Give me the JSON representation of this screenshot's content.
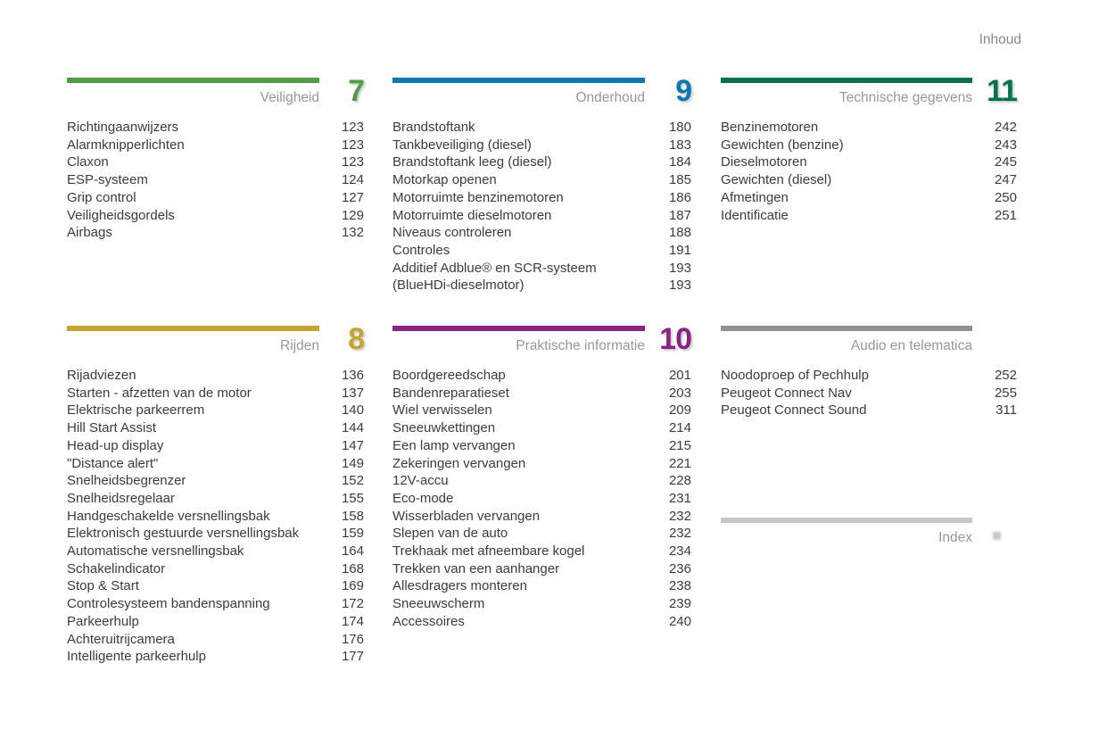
{
  "page": {
    "header": "Inhoud"
  },
  "sections": [
    {
      "label": "Veiligheid",
      "number": "7",
      "color": "#4f9c44",
      "items": [
        {
          "label": "Richtingaanwijzers",
          "page": "123"
        },
        {
          "label": "Alarmknipperlichten",
          "page": "123"
        },
        {
          "label": "Claxon",
          "page": "123"
        },
        {
          "label": "ESP-systeem",
          "page": "124"
        },
        {
          "label": "Grip control",
          "page": "127"
        },
        {
          "label": "Veiligheidsgordels",
          "page": "129"
        },
        {
          "label": "Airbags",
          "page": "132"
        }
      ]
    },
    {
      "label": "Onderhoud",
      "number": "9",
      "color": "#0d78b0",
      "items": [
        {
          "label": "Brandstoftank",
          "page": "180"
        },
        {
          "label": "Tankbeveiliging (diesel)",
          "page": "183"
        },
        {
          "label": "Brandstoftank leeg (diesel)",
          "page": "184"
        },
        {
          "label": "Motorkap openen",
          "page": "185"
        },
        {
          "label": "Motorruimte benzinemotoren",
          "page": "186"
        },
        {
          "label": "Motorruimte dieselmotoren",
          "page": "187"
        },
        {
          "label": "Niveaus controleren",
          "page": "188"
        },
        {
          "label": "Controles",
          "page": "191"
        },
        {
          "label": "Additief Adblue® en SCR-systeem",
          "page": "193"
        },
        {
          "label": "(BlueHDi-dieselmotor)",
          "page": "193"
        }
      ]
    },
    {
      "label": "Technische gegevens",
      "number": "11",
      "color": "#07704e",
      "items": [
        {
          "label": "Benzinemotoren",
          "page": "242"
        },
        {
          "label": "Gewichten (benzine)",
          "page": "243"
        },
        {
          "label": "Dieselmotoren",
          "page": "245"
        },
        {
          "label": "Gewichten (diesel)",
          "page": "247"
        },
        {
          "label": "Afmetingen",
          "page": "250"
        },
        {
          "label": "Identificatie",
          "page": "251"
        }
      ]
    },
    {
      "label": "Rijden",
      "number": "8",
      "color": "#c7a42f",
      "items": [
        {
          "label": "Rijadviezen",
          "page": "136"
        },
        {
          "label": "Starten - afzetten van de motor",
          "page": "137"
        },
        {
          "label": "Elektrische parkeerrem",
          "page": "140"
        },
        {
          "label": "Hill Start Assist",
          "page": "144"
        },
        {
          "label": "Head-up display",
          "page": "147"
        },
        {
          "label": "\"Distance alert\"",
          "page": "149"
        },
        {
          "label": "Snelheidsbegrenzer",
          "page": "152"
        },
        {
          "label": "Snelheidsregelaar",
          "page": "155"
        },
        {
          "label": "Handgeschakelde versnellingsbak",
          "page": "158"
        },
        {
          "label": "Elektronisch gestuurde versnellingsbak",
          "page": "159"
        },
        {
          "label": "Automatische versnellingsbak",
          "page": "164"
        },
        {
          "label": "Schakelindicator",
          "page": "168"
        },
        {
          "label": "Stop & Start",
          "page": "169"
        },
        {
          "label": "Controlesysteem bandenspanning",
          "page": "172"
        },
        {
          "label": "Parkeerhulp",
          "page": "174"
        },
        {
          "label": "Achteruitrijcamera",
          "page": "176"
        },
        {
          "label": "Intelligente parkeerhulp",
          "page": "177"
        }
      ]
    },
    {
      "label": "Praktische informatie",
      "number": "10",
      "color": "#8a2484",
      "items": [
        {
          "label": "Boordgereedschap",
          "page": "201"
        },
        {
          "label": "Bandenreparatieset",
          "page": "203"
        },
        {
          "label": "Wiel verwisselen",
          "page": "209"
        },
        {
          "label": "Sneeuwkettingen",
          "page": "214"
        },
        {
          "label": "Een lamp vervangen",
          "page": "215"
        },
        {
          "label": "Zekeringen vervangen",
          "page": "221"
        },
        {
          "label": "12V-accu",
          "page": "228"
        },
        {
          "label": "Eco-mode",
          "page": "231"
        },
        {
          "label": "Wisserbladen vervangen",
          "page": "232"
        },
        {
          "label": "Slepen van de auto",
          "page": "232"
        },
        {
          "label": "Trekhaak met afneembare kogel",
          "page": "234"
        },
        {
          "label": "Trekken van een aanhanger",
          "page": "236"
        },
        {
          "label": "Allesdragers monteren",
          "page": "238"
        },
        {
          "label": "Sneeuwscherm",
          "page": "239"
        },
        {
          "label": "Accessoires",
          "page": "240"
        }
      ]
    },
    {
      "label": "Audio en telematica",
      "number": "",
      "color": "#8d9192",
      "items": [
        {
          "label": "Noodoproep of Pechhulp",
          "page": "252"
        },
        {
          "label": "Peugeot Connect Nav",
          "page": "255"
        },
        {
          "label": "Peugeot Connect Sound",
          "page": "311"
        }
      ]
    },
    {
      "label": "Index",
      "number": "",
      "color": "#c5c7c9",
      "items": []
    }
  ]
}
